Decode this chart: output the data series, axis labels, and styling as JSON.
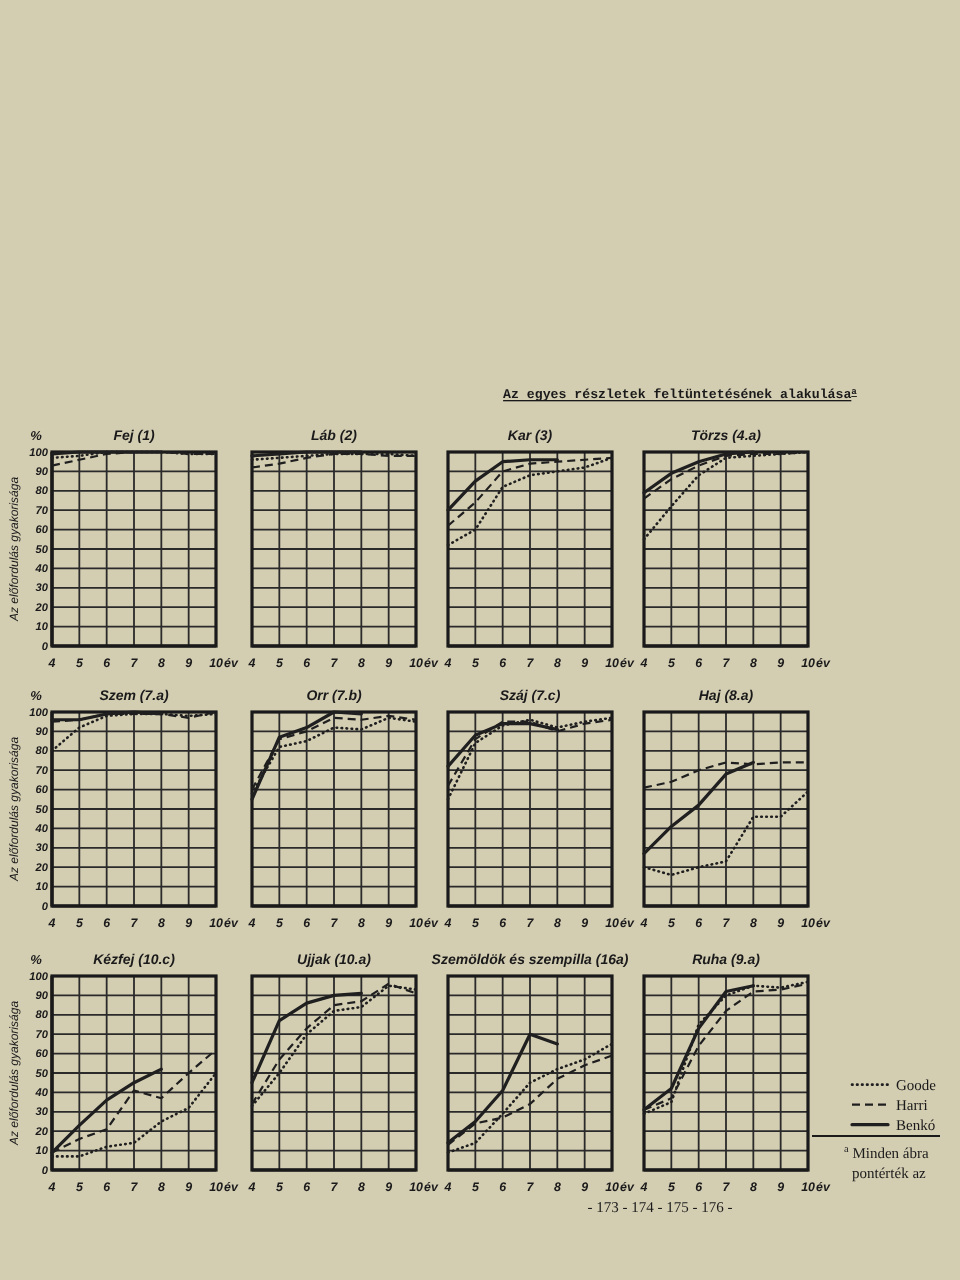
{
  "chart_data": [
    {
      "type": "other",
      "title": "Az egyes részletek feltüntetésének alakulása$^{a}$"
    },
    {
      "type": "line",
      "title": "Fej (1)",
      "xlabel": "év",
      "ylabel": "Az előfordulás gyakorisága",
      "annotations": [
        "%"
      ],
      "x": [
        4,
        5,
        6,
        7,
        8,
        9,
        10
      ],
      "xlim": [
        4,
        10
      ],
      "ylim": [
        0,
        100
      ],
      "xticks": [
        4,
        5,
        6,
        7,
        8,
        9,
        10
      ],
      "yticks": [
        0,
        10,
        20,
        30,
        40,
        50,
        60,
        70,
        80,
        90,
        100
      ],
      "grid": true,
      "series": [
        {
          "color": "#1f1f1f",
          "line_style": "dotted",
          "values": [
            97,
            98,
            100,
            100,
            100,
            99,
            99
          ]
        },
        {
          "color": "#1f1f1f",
          "line_style": "dashed",
          "values": [
            93,
            96,
            99,
            100,
            100,
            99,
            99
          ]
        },
        {
          "color": "#1f1f1f",
          "line_style": "solid",
          "values": [
            99,
            100,
            100,
            100,
            100,
            null,
            null
          ]
        }
      ]
    },
    {
      "type": "line",
      "title": "Láb (2)",
      "xlabel": "év",
      "x": [
        4,
        5,
        6,
        7,
        8,
        9,
        10
      ],
      "xlim": [
        4,
        10
      ],
      "ylim": [
        0,
        100
      ],
      "xticks": [
        4,
        5,
        6,
        7,
        8,
        9,
        10
      ],
      "yticks": [
        0,
        10,
        20,
        30,
        40,
        50,
        60,
        70,
        80,
        90,
        100
      ],
      "grid": true,
      "tick_labels": "x",
      "series": [
        {
          "color": "#1f1f1f",
          "line_style": "dotted",
          "values": [
            96,
            97,
            98,
            99,
            99,
            99,
            98
          ]
        },
        {
          "color": "#1f1f1f",
          "line_style": "dashed",
          "values": [
            92,
            94,
            97,
            99,
            99,
            98,
            98
          ]
        },
        {
          "color": "#1f1f1f",
          "line_style": "solid",
          "values": [
            98,
            99,
            100,
            100,
            100,
            null,
            null
          ]
        }
      ]
    },
    {
      "type": "line",
      "title": "Kar (3)",
      "xlabel": "év",
      "x": [
        4,
        5,
        6,
        7,
        8,
        9,
        10
      ],
      "xlim": [
        4,
        10
      ],
      "ylim": [
        0,
        100
      ],
      "xticks": [
        4,
        5,
        6,
        7,
        8,
        9,
        10
      ],
      "yticks": [
        0,
        10,
        20,
        30,
        40,
        50,
        60,
        70,
        80,
        90,
        100
      ],
      "grid": true,
      "tick_labels": "x",
      "series": [
        {
          "color": "#1f1f1f",
          "line_style": "dotted",
          "values": [
            52,
            60,
            82,
            88,
            90,
            92,
            97
          ]
        },
        {
          "color": "#1f1f1f",
          "line_style": "dashed",
          "values": [
            62,
            74,
            90,
            94,
            95,
            96,
            97
          ]
        },
        {
          "color": "#1f1f1f",
          "line_style": "solid",
          "values": [
            70,
            85,
            95,
            96,
            96,
            null,
            null
          ]
        }
      ]
    },
    {
      "type": "line",
      "title": "Törzs (4.a)",
      "xlabel": "év",
      "x": [
        4,
        5,
        6,
        7,
        8,
        9,
        10
      ],
      "xlim": [
        4,
        10
      ],
      "ylim": [
        0,
        100
      ],
      "xticks": [
        4,
        5,
        6,
        7,
        8,
        9,
        10
      ],
      "yticks": [
        0,
        10,
        20,
        30,
        40,
        50,
        60,
        70,
        80,
        90,
        100
      ],
      "grid": true,
      "tick_labels": "x",
      "series": [
        {
          "color": "#1f1f1f",
          "line_style": "dotted",
          "values": [
            55,
            72,
            88,
            97,
            98,
            99,
            100
          ]
        },
        {
          "color": "#1f1f1f",
          "line_style": "dashed",
          "values": [
            76,
            86,
            93,
            98,
            99,
            99,
            100
          ]
        },
        {
          "color": "#1f1f1f",
          "line_style": "solid",
          "values": [
            79,
            89,
            95,
            99,
            100,
            null,
            null
          ]
        }
      ]
    },
    {
      "type": "line",
      "title": "Szem (7.a)",
      "xlabel": "év",
      "ylabel": "Az előfordulás gyakorisága",
      "annotations": [
        "%"
      ],
      "x": [
        4,
        5,
        6,
        7,
        8,
        9,
        10
      ],
      "xlim": [
        4,
        10
      ],
      "ylim": [
        0,
        100
      ],
      "xticks": [
        4,
        5,
        6,
        7,
        8,
        9,
        10
      ],
      "yticks": [
        0,
        10,
        20,
        30,
        40,
        50,
        60,
        70,
        80,
        90,
        100
      ],
      "grid": true,
      "series": [
        {
          "color": "#1f1f1f",
          "line_style": "dotted",
          "values": [
            80,
            92,
            98,
            99,
            99,
            98,
            99
          ]
        },
        {
          "color": "#1f1f1f",
          "line_style": "dashed",
          "values": [
            95,
            96,
            99,
            99,
            99,
            97,
            100
          ]
        },
        {
          "color": "#1f1f1f",
          "line_style": "solid",
          "values": [
            96,
            96,
            99,
            100,
            99,
            null,
            null
          ]
        }
      ]
    },
    {
      "type": "line",
      "title": "Orr (7.b)",
      "xlabel": "év",
      "x": [
        4,
        5,
        6,
        7,
        8,
        9,
        10
      ],
      "xlim": [
        4,
        10
      ],
      "ylim": [
        0,
        100
      ],
      "xticks": [
        4,
        5,
        6,
        7,
        8,
        9,
        10
      ],
      "yticks": [
        0,
        10,
        20,
        30,
        40,
        50,
        60,
        70,
        80,
        90,
        100
      ],
      "grid": true,
      "tick_labels": "x",
      "series": [
        {
          "color": "#1f1f1f",
          "line_style": "dotted",
          "values": [
            58,
            82,
            85,
            92,
            91,
            97,
            95
          ]
        },
        {
          "color": "#1f1f1f",
          "line_style": "dashed",
          "values": [
            60,
            86,
            90,
            97,
            96,
            98,
            96
          ]
        },
        {
          "color": "#1f1f1f",
          "line_style": "solid",
          "values": [
            55,
            87,
            92,
            100,
            99,
            null,
            null
          ]
        }
      ]
    },
    {
      "type": "line",
      "title": "Száj (7.c)",
      "xlabel": "év",
      "x": [
        4,
        5,
        6,
        7,
        8,
        9,
        10
      ],
      "xlim": [
        4,
        10
      ],
      "ylim": [
        0,
        100
      ],
      "xticks": [
        4,
        5,
        6,
        7,
        8,
        9,
        10
      ],
      "yticks": [
        0,
        10,
        20,
        30,
        40,
        50,
        60,
        70,
        80,
        90,
        100
      ],
      "grid": true,
      "tick_labels": "x",
      "series": [
        {
          "color": "#1f1f1f",
          "line_style": "dotted",
          "values": [
            55,
            84,
            93,
            96,
            92,
            95,
            97
          ]
        },
        {
          "color": "#1f1f1f",
          "line_style": "dashed",
          "values": [
            62,
            86,
            95,
            95,
            90,
            94,
            96
          ]
        },
        {
          "color": "#1f1f1f",
          "line_style": "solid",
          "values": [
            72,
            88,
            94,
            94,
            91,
            null,
            null
          ]
        }
      ]
    },
    {
      "type": "line",
      "title": "Haj (8.a)",
      "xlabel": "év",
      "x": [
        4,
        5,
        6,
        7,
        8,
        9,
        10
      ],
      "xlim": [
        4,
        10
      ],
      "ylim": [
        0,
        100
      ],
      "xticks": [
        4,
        5,
        6,
        7,
        8,
        9,
        10
      ],
      "yticks": [
        0,
        10,
        20,
        30,
        40,
        50,
        60,
        70,
        80,
        90,
        100
      ],
      "grid": true,
      "tick_labels": "x",
      "series": [
        {
          "color": "#1f1f1f",
          "line_style": "dotted",
          "values": [
            20,
            16,
            20,
            23,
            46,
            46,
            59
          ]
        },
        {
          "color": "#1f1f1f",
          "line_style": "dashed",
          "values": [
            61,
            64,
            70,
            74,
            73,
            74,
            74
          ]
        },
        {
          "color": "#1f1f1f",
          "line_style": "solid",
          "values": [
            27,
            41,
            52,
            68,
            74,
            null,
            null
          ]
        }
      ]
    },
    {
      "type": "line",
      "title": "Kézfej (10.c)",
      "xlabel": "év",
      "ylabel": "Az előfordulás gyakorisága",
      "annotations": [
        "%"
      ],
      "x": [
        4,
        5,
        6,
        7,
        8,
        9,
        10
      ],
      "xlim": [
        4,
        10
      ],
      "ylim": [
        0,
        100
      ],
      "xticks": [
        4,
        5,
        6,
        7,
        8,
        9,
        10
      ],
      "yticks": [
        0,
        10,
        20,
        30,
        40,
        50,
        60,
        70,
        80,
        90,
        100
      ],
      "grid": true,
      "series": [
        {
          "color": "#1f1f1f",
          "line_style": "dotted",
          "values": [
            7,
            7,
            12,
            14,
            25,
            32,
            50
          ]
        },
        {
          "color": "#1f1f1f",
          "line_style": "dashed",
          "values": [
            9,
            16,
            21,
            41,
            37,
            50,
            62
          ]
        },
        {
          "color": "#1f1f1f",
          "line_style": "solid",
          "values": [
            9,
            23,
            36,
            45,
            52,
            null,
            null
          ]
        }
      ]
    },
    {
      "type": "line",
      "title": "Ujjak (10.a)",
      "xlabel": "év",
      "x": [
        4,
        5,
        6,
        7,
        8,
        9,
        10
      ],
      "xlim": [
        4,
        10
      ],
      "ylim": [
        0,
        100
      ],
      "xticks": [
        4,
        5,
        6,
        7,
        8,
        9,
        10
      ],
      "yticks": [
        0,
        10,
        20,
        30,
        40,
        50,
        60,
        70,
        80,
        90,
        100
      ],
      "grid": true,
      "tick_labels": "x",
      "series": [
        {
          "color": "#1f1f1f",
          "line_style": "dotted",
          "values": [
            33,
            50,
            70,
            82,
            84,
            95,
            93
          ]
        },
        {
          "color": "#1f1f1f",
          "line_style": "dashed",
          "values": [
            34,
            57,
            73,
            85,
            87,
            96,
            91
          ]
        },
        {
          "color": "#1f1f1f",
          "line_style": "solid",
          "values": [
            45,
            77,
            86,
            90,
            91,
            null,
            null
          ]
        }
      ]
    },
    {
      "type": "line",
      "title": "Szemöldök és szempilla (16a)",
      "xlabel": "év",
      "x": [
        4,
        5,
        6,
        7,
        8,
        9,
        10
      ],
      "xlim": [
        4,
        10
      ],
      "ylim": [
        0,
        100
      ],
      "xticks": [
        4,
        5,
        6,
        7,
        8,
        9,
        10
      ],
      "yticks": [
        0,
        10,
        20,
        30,
        40,
        50,
        60,
        70,
        80,
        90,
        100
      ],
      "grid": true,
      "tick_labels": "x",
      "series": [
        {
          "color": "#1f1f1f",
          "line_style": "dotted",
          "values": [
            9,
            14,
            29,
            45,
            52,
            57,
            65
          ]
        },
        {
          "color": "#1f1f1f",
          "line_style": "dashed",
          "values": [
            13,
            24,
            27,
            34,
            47,
            54,
            59
          ]
        },
        {
          "color": "#1f1f1f",
          "line_style": "solid",
          "values": [
            14,
            25,
            41,
            70,
            65,
            null,
            null
          ]
        }
      ]
    },
    {
      "type": "line",
      "title": "Ruha (9.a)",
      "xlabel": "év",
      "x": [
        4,
        5,
        6,
        7,
        8,
        9,
        10
      ],
      "xlim": [
        4,
        10
      ],
      "ylim": [
        0,
        100
      ],
      "xticks": [
        4,
        5,
        6,
        7,
        8,
        9,
        10
      ],
      "yticks": [
        0,
        10,
        20,
        30,
        40,
        50,
        60,
        70,
        80,
        90,
        100
      ],
      "grid": true,
      "tick_labels": "x",
      "legend": "right",
      "series": [
        {
          "name": "Goode",
          "color": "#1f1f1f",
          "line_style": "dotted",
          "values": [
            29,
            35,
            75,
            90,
            95,
            94,
            97
          ]
        },
        {
          "name": "Harri",
          "color": "#1f1f1f",
          "line_style": "dashed",
          "values": [
            31,
            37,
            64,
            82,
            92,
            93,
            96
          ]
        },
        {
          "name": "Benkó",
          "color": "#1f1f1f",
          "line_style": "solid",
          "values": [
            31,
            42,
            73,
            92,
            95,
            null,
            null
          ]
        }
      ]
    },
    {
      "type": "other",
      "annotations": [
        "$^{a}$ Minden ábra",
        "pontérték az",
        "- 173 - 174 - 175 - 176 -"
      ]
    }
  ]
}
